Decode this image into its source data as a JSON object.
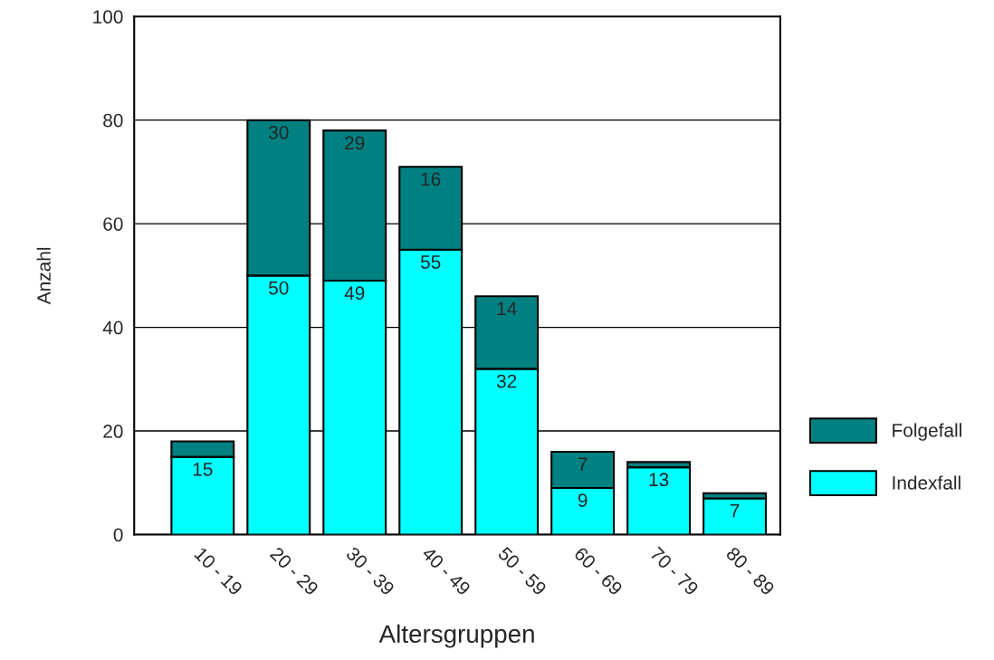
{
  "chart_data": {
    "type": "bar",
    "stacked": true,
    "xlabel": "Altersgruppen",
    "ylabel": "Anzahl",
    "categories": [
      "10 - 19",
      "20 - 29",
      "30 - 39",
      "40 - 49",
      "50 - 59",
      "60 - 69",
      "70 - 79",
      "80 - 89"
    ],
    "series": [
      {
        "name": "Indexfall",
        "color": "#00ffff",
        "values": [
          15,
          50,
          49,
          55,
          32,
          9,
          13,
          7
        ],
        "value_labels": [
          "15",
          "50",
          "49",
          "55",
          "32",
          "9",
          "13",
          "7"
        ]
      },
      {
        "name": "Folgefall",
        "color": "#008080",
        "values": [
          3,
          30,
          29,
          16,
          14,
          7,
          1,
          1
        ],
        "value_labels": [
          null,
          "30",
          "29",
          "16",
          "14",
          "7",
          null,
          null
        ]
      }
    ],
    "ylim": [
      0,
      100
    ],
    "yticks": [
      0,
      20,
      40,
      60,
      80,
      100
    ],
    "grid": "y",
    "legend": "right"
  }
}
